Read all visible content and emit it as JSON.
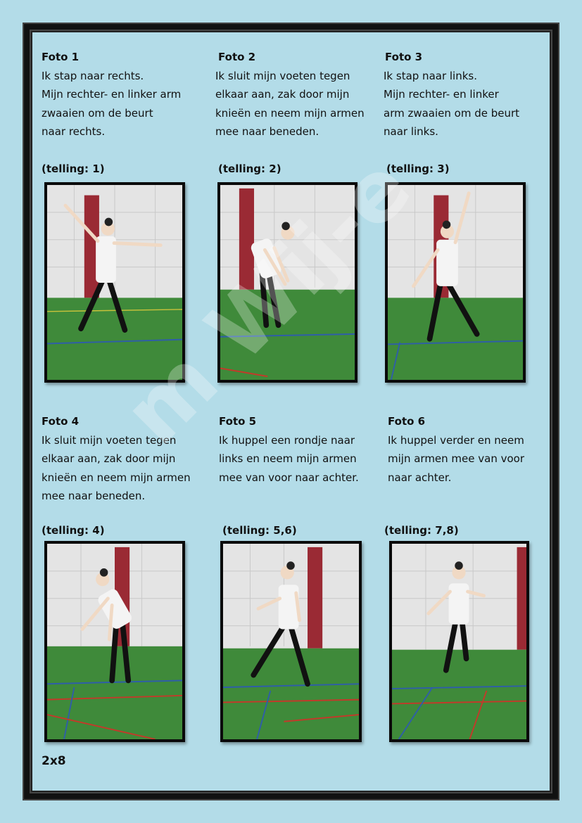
{
  "steps": [
    {
      "title": "Foto 1",
      "lines": [
        "Ik stap naar rechts.",
        "Mijn rechter- en linker arm",
        "zwaaien om de beurt",
        "naar rechts."
      ],
      "count": "(telling: 1)"
    },
    {
      "title": "Foto 2",
      "lines": [
        "Ik sluit mijn voeten tegen",
        "elkaar aan, zak door mijn",
        "knieën en neem mijn armen",
        "mee naar beneden."
      ],
      "count": "(telling: 2)"
    },
    {
      "title": "Foto 3",
      "lines": [
        "Ik stap naar links.",
        "Mijn rechter- en linker",
        "arm zwaaien om de beurt",
        "naar  links."
      ],
      "count": "(telling: 3)"
    },
    {
      "title": "Foto 4",
      "lines": [
        "Ik sluit mijn voeten tegen",
        "elkaar aan, zak door mijn",
        "knieën en neem mijn armen",
        "mee naar beneden."
      ],
      "count": "(telling: 4)"
    },
    {
      "title": "Foto 5",
      "lines": [
        "Ik huppel een rondje naar",
        "links en neem mijn armen",
        "mee van voor naar achter."
      ],
      "count": "(telling: 5,6)"
    },
    {
      "title": "Foto 6",
      "lines": [
        "Ik huppel verder en neem",
        "mijn armen mee van voor",
        " naar achter."
      ],
      "count": "(telling: 7,8)"
    }
  ],
  "footer": "2x8",
  "watermark": "m Wij-e",
  "colors": {
    "background": "#b3dce8",
    "frame": "#111111",
    "wall": "#e4e4e4",
    "floor": "#3f8a3a",
    "pillar": "#9a2a34"
  }
}
